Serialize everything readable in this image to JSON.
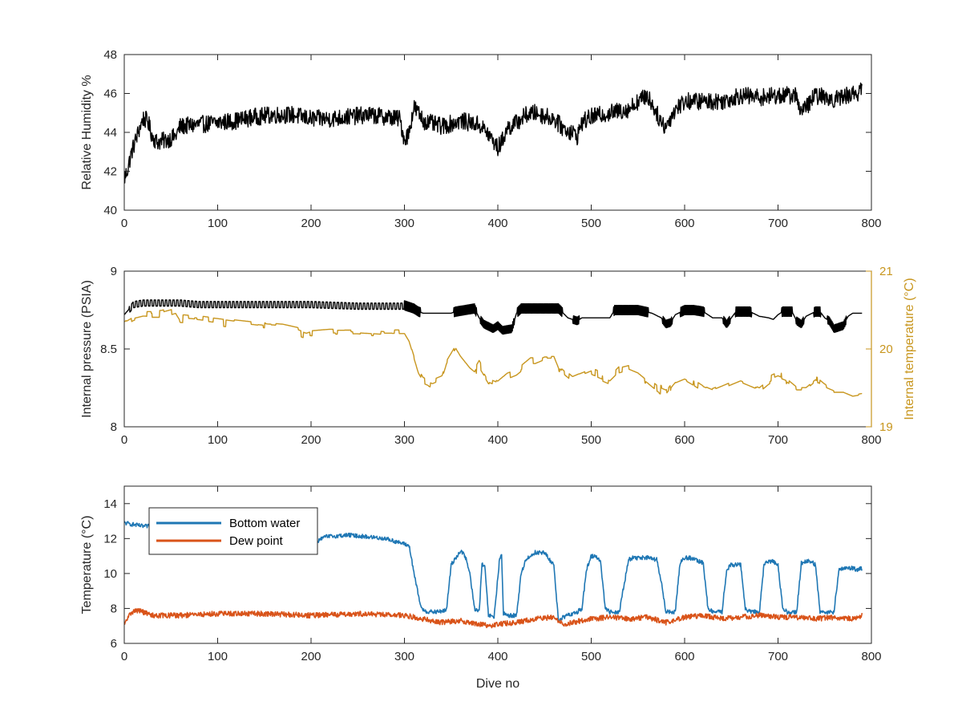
{
  "chart_data": [
    {
      "type": "line",
      "title": "",
      "xlabel": "",
      "ylabel": "Relative Humidity %",
      "xlim": [
        0,
        800
      ],
      "ylim": [
        40,
        48
      ],
      "xticks": [
        "0",
        "100",
        "200",
        "300",
        "400",
        "500",
        "600",
        "700",
        "800"
      ],
      "yticks": [
        "40",
        "42",
        "44",
        "46",
        "48"
      ],
      "grid": false,
      "series": [
        {
          "color": "#000000",
          "noise": 0.45,
          "x": [
            0,
            3,
            8,
            15,
            20,
            25,
            30,
            35,
            45,
            55,
            60,
            80,
            100,
            120,
            140,
            160,
            180,
            200,
            220,
            240,
            260,
            280,
            295,
            300,
            305,
            310,
            315,
            320,
            340,
            360,
            380,
            390,
            400,
            405,
            410,
            420,
            430,
            440,
            460,
            470,
            480,
            485,
            490,
            500,
            520,
            540,
            550,
            560,
            570,
            575,
            580,
            590,
            600,
            620,
            640,
            660,
            680,
            700,
            720,
            725,
            740,
            760,
            780,
            790
          ],
          "y": [
            41.6,
            42.0,
            43.0,
            44.0,
            44.7,
            44.6,
            43.8,
            43.5,
            43.6,
            43.8,
            44.3,
            44.4,
            44.5,
            44.6,
            44.8,
            44.9,
            44.9,
            44.7,
            44.7,
            44.8,
            44.9,
            44.8,
            44.7,
            43.6,
            44.0,
            45.3,
            45.0,
            44.6,
            44.3,
            44.6,
            44.4,
            43.9,
            43.2,
            43.6,
            44.2,
            44.5,
            44.9,
            45.0,
            44.7,
            44.2,
            44.0,
            43.8,
            44.5,
            44.8,
            45.0,
            45.2,
            45.6,
            45.9,
            45.0,
            44.5,
            44.3,
            45.2,
            45.6,
            45.6,
            45.6,
            45.9,
            45.8,
            45.9,
            45.9,
            45.0,
            45.9,
            45.7,
            46.0,
            46.1
          ]
        }
      ]
    },
    {
      "type": "line",
      "title": "",
      "xlabel": "",
      "ylabel": "Internal pressure (PSIA)",
      "y2label": "Internal temperature (°C)",
      "xlim": [
        0,
        800
      ],
      "ylim": [
        8,
        9
      ],
      "y2lim": [
        19,
        21
      ],
      "xticks": [
        "0",
        "100",
        "200",
        "300",
        "400",
        "500",
        "600",
        "700",
        "800"
      ],
      "yticks": [
        "8",
        "8.5",
        "9"
      ],
      "y2ticks": [
        "19",
        "20",
        "21"
      ],
      "grid": false,
      "series": [
        {
          "axis": "left",
          "color": "#000000",
          "x": [
            0,
            10,
            20,
            40,
            60,
            80,
            100,
            150,
            200,
            250,
            290,
            300,
            310,
            315,
            320,
            340,
            350,
            355,
            375,
            380,
            385,
            395,
            400,
            405,
            415,
            420,
            425,
            440,
            455,
            465,
            470,
            475,
            480,
            485,
            490,
            500,
            520,
            525,
            535,
            550,
            565,
            575,
            580,
            585,
            590,
            600,
            610,
            620,
            625,
            630,
            640,
            645,
            650,
            655,
            665,
            670,
            680,
            690,
            695,
            700,
            705,
            715,
            720,
            725,
            730,
            740,
            745,
            750,
            755,
            760,
            770,
            775,
            780,
            790
          ],
          "y": [
            8.72,
            8.79,
            8.8,
            8.8,
            8.8,
            8.79,
            8.79,
            8.79,
            8.79,
            8.78,
            8.78,
            8.78,
            8.76,
            8.74,
            8.73,
            8.73,
            8.73,
            8.74,
            8.76,
            8.7,
            8.66,
            8.63,
            8.65,
            8.62,
            8.63,
            8.73,
            8.76,
            8.76,
            8.76,
            8.76,
            8.73,
            8.7,
            8.69,
            8.68,
            8.7,
            8.7,
            8.7,
            8.75,
            8.75,
            8.75,
            8.73,
            8.7,
            8.66,
            8.67,
            8.72,
            8.75,
            8.75,
            8.74,
            8.72,
            8.7,
            8.7,
            8.66,
            8.7,
            8.74,
            8.74,
            8.74,
            8.71,
            8.7,
            8.69,
            8.72,
            8.74,
            8.74,
            8.68,
            8.66,
            8.71,
            8.74,
            8.74,
            8.7,
            8.68,
            8.63,
            8.65,
            8.71,
            8.73,
            8.73
          ]
        },
        {
          "axis": "right",
          "color": "#C8961E",
          "noise": 0.03,
          "x": [
            0,
            10,
            20,
            40,
            55,
            60,
            80,
            100,
            120,
            150,
            170,
            185,
            195,
            200,
            220,
            250,
            280,
            300,
            305,
            310,
            315,
            320,
            330,
            340,
            345,
            350,
            355,
            360,
            370,
            375,
            380,
            390,
            400,
            410,
            420,
            430,
            435,
            440,
            450,
            460,
            465,
            470,
            480,
            490,
            500,
            510,
            520,
            530,
            540,
            550,
            560,
            570,
            580,
            590,
            600,
            610,
            620,
            630,
            640,
            650,
            660,
            670,
            680,
            690,
            700,
            710,
            720,
            730,
            740,
            750,
            760,
            770,
            780,
            790
          ],
          "y": [
            20.35,
            20.42,
            20.45,
            20.45,
            20.5,
            20.4,
            20.38,
            20.35,
            20.32,
            20.28,
            20.26,
            20.22,
            20.18,
            20.2,
            20.22,
            20.22,
            20.2,
            20.2,
            20.1,
            19.9,
            19.7,
            19.6,
            19.55,
            19.6,
            19.8,
            19.9,
            20.0,
            19.9,
            19.75,
            19.7,
            19.8,
            19.6,
            19.55,
            19.65,
            19.7,
            19.8,
            19.85,
            19.85,
            19.9,
            19.9,
            19.75,
            19.7,
            19.6,
            19.65,
            19.7,
            19.65,
            19.6,
            19.72,
            19.75,
            19.7,
            19.6,
            19.5,
            19.45,
            19.6,
            19.65,
            19.58,
            19.5,
            19.45,
            19.5,
            19.55,
            19.6,
            19.55,
            19.5,
            19.6,
            19.65,
            19.6,
            19.5,
            19.5,
            19.6,
            19.5,
            19.45,
            19.45,
            19.4,
            19.42
          ]
        }
      ]
    },
    {
      "type": "line",
      "title": "",
      "xlabel": "Dive no",
      "ylabel": "Temperature (°C)",
      "xlim": [
        0,
        800
      ],
      "ylim": [
        6,
        15
      ],
      "xticks": [
        "0",
        "100",
        "200",
        "300",
        "400",
        "500",
        "600",
        "700",
        "800"
      ],
      "yticks": [
        "6",
        "8",
        "10",
        "12",
        "14"
      ],
      "grid": false,
      "legend": "top-left",
      "series": [
        {
          "name": "Bottom water",
          "color": "#1F77B4",
          "noise": 0.12,
          "x": [
            0,
            10,
            20,
            30,
            60,
            100,
            150,
            200,
            205,
            215,
            240,
            280,
            305,
            312,
            318,
            325,
            335,
            345,
            350,
            360,
            365,
            370,
            375,
            380,
            383,
            386,
            390,
            396,
            402,
            404,
            406,
            410,
            420,
            425,
            430,
            440,
            450,
            455,
            460,
            465,
            470,
            485,
            490,
            495,
            500,
            505,
            510,
            515,
            520,
            530,
            540,
            545,
            550,
            555,
            560,
            570,
            575,
            580,
            590,
            595,
            600,
            605,
            610,
            620,
            625,
            630,
            640,
            645,
            650,
            655,
            660,
            665,
            670,
            680,
            685,
            690,
            695,
            700,
            705,
            710,
            720,
            725,
            730,
            735,
            740,
            745,
            750,
            755,
            760,
            765,
            770,
            775,
            780,
            785,
            790
          ],
          "y": [
            12.9,
            12.8,
            12.7,
            12.7,
            12.6,
            12.7,
            12.7,
            12.6,
            11.8,
            12.1,
            12.2,
            12.0,
            11.6,
            9.5,
            8.0,
            7.8,
            7.8,
            7.9,
            10.5,
            11.3,
            11.0,
            10.0,
            8.0,
            7.8,
            10.5,
            10.4,
            7.6,
            7.5,
            10.9,
            11.0,
            7.7,
            7.6,
            7.6,
            10.0,
            10.8,
            11.2,
            11.2,
            10.8,
            10.5,
            7.2,
            7.5,
            7.8,
            8.0,
            10.2,
            11.0,
            11.0,
            10.7,
            8.0,
            7.8,
            7.8,
            10.8,
            10.9,
            10.9,
            10.9,
            10.9,
            10.8,
            9.5,
            7.8,
            7.8,
            10.6,
            10.9,
            10.9,
            10.8,
            10.6,
            8.0,
            7.8,
            7.8,
            10.2,
            10.5,
            10.5,
            10.5,
            8.0,
            7.8,
            7.8,
            10.5,
            10.7,
            10.7,
            10.5,
            8.0,
            7.8,
            7.8,
            10.6,
            10.7,
            10.7,
            10.5,
            7.8,
            7.8,
            7.8,
            7.8,
            10.2,
            10.3,
            10.3,
            10.3,
            10.2,
            10.3
          ]
        },
        {
          "name": "Dew point",
          "color": "#D95319",
          "noise": 0.15,
          "x": [
            0,
            3,
            8,
            15,
            20,
            30,
            60,
            100,
            150,
            200,
            250,
            300,
            320,
            340,
            360,
            380,
            390,
            400,
            420,
            440,
            460,
            470,
            480,
            500,
            520,
            540,
            560,
            580,
            600,
            620,
            640,
            660,
            680,
            700,
            720,
            740,
            760,
            780,
            790
          ],
          "y": [
            7.0,
            7.4,
            7.8,
            7.9,
            7.8,
            7.6,
            7.6,
            7.7,
            7.7,
            7.6,
            7.7,
            7.6,
            7.4,
            7.2,
            7.3,
            7.1,
            7.0,
            7.1,
            7.2,
            7.4,
            7.5,
            7.1,
            7.2,
            7.4,
            7.5,
            7.4,
            7.5,
            7.2,
            7.5,
            7.6,
            7.4,
            7.5,
            7.6,
            7.5,
            7.5,
            7.4,
            7.5,
            7.4,
            7.6
          ]
        }
      ]
    }
  ]
}
